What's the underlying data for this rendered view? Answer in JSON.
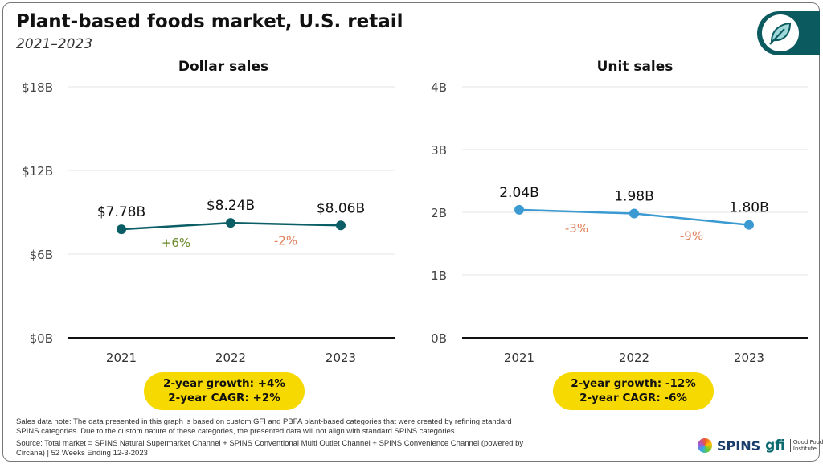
{
  "title": "Plant-based foods market, U.S. retail",
  "subtitle": "2021–2023",
  "icon": "leaf-icon",
  "colors": {
    "dollar_line": "#0b5e66",
    "unit_line": "#3a9ad1",
    "positive": "#6b8a2a",
    "negative": "#e0805a",
    "pill": "#f6d900",
    "brand": "#0b5a60"
  },
  "chart_data": [
    {
      "type": "line",
      "title": "Dollar sales",
      "categories": [
        "2021",
        "2022",
        "2023"
      ],
      "values": [
        7.78,
        8.24,
        8.06
      ],
      "data_labels": [
        "$7.78B",
        "$8.24B",
        "$8.06B"
      ],
      "changes": [
        "+6%",
        "-2%"
      ],
      "yticks": [
        "$0B",
        "$6B",
        "$12B",
        "$18B"
      ],
      "ylim": [
        0,
        18
      ],
      "grid": true
    },
    {
      "type": "line",
      "title": "Unit sales",
      "categories": [
        "2021",
        "2022",
        "2023"
      ],
      "values": [
        2.04,
        1.98,
        1.8
      ],
      "data_labels": [
        "2.04B",
        "1.98B",
        "1.80B"
      ],
      "changes": [
        "-3%",
        "-9%"
      ],
      "yticks": [
        "0B",
        "1B",
        "2B",
        "3B",
        "4B"
      ],
      "ylim": [
        0,
        4
      ],
      "grid": true
    }
  ],
  "summary": [
    {
      "growth": "2-year growth: +4%",
      "cagr": "2-year CAGR: +2%"
    },
    {
      "growth": "2-year growth: -12%",
      "cagr": "2-year CAGR: -6%"
    }
  ],
  "notes": {
    "sales_note": "Sales data note: The data presented in this graph is based on custom GFI and PBFA plant-based categories that were created by refining standard SPINS categories. Due to the custom nature of these categories, the presented data will not align with standard SPINS categories.",
    "source": "Source: Total market = SPINS Natural Supermarket Channel + SPINS Conventional Multi Outlet Channel + SPINS Convenience Channel (powered by Circana) | 52 Weeks Ending 12-3-2023"
  },
  "logos": {
    "spins": "SPINS",
    "gfi": "gfi",
    "gfi_name": "Good Food Institute"
  }
}
